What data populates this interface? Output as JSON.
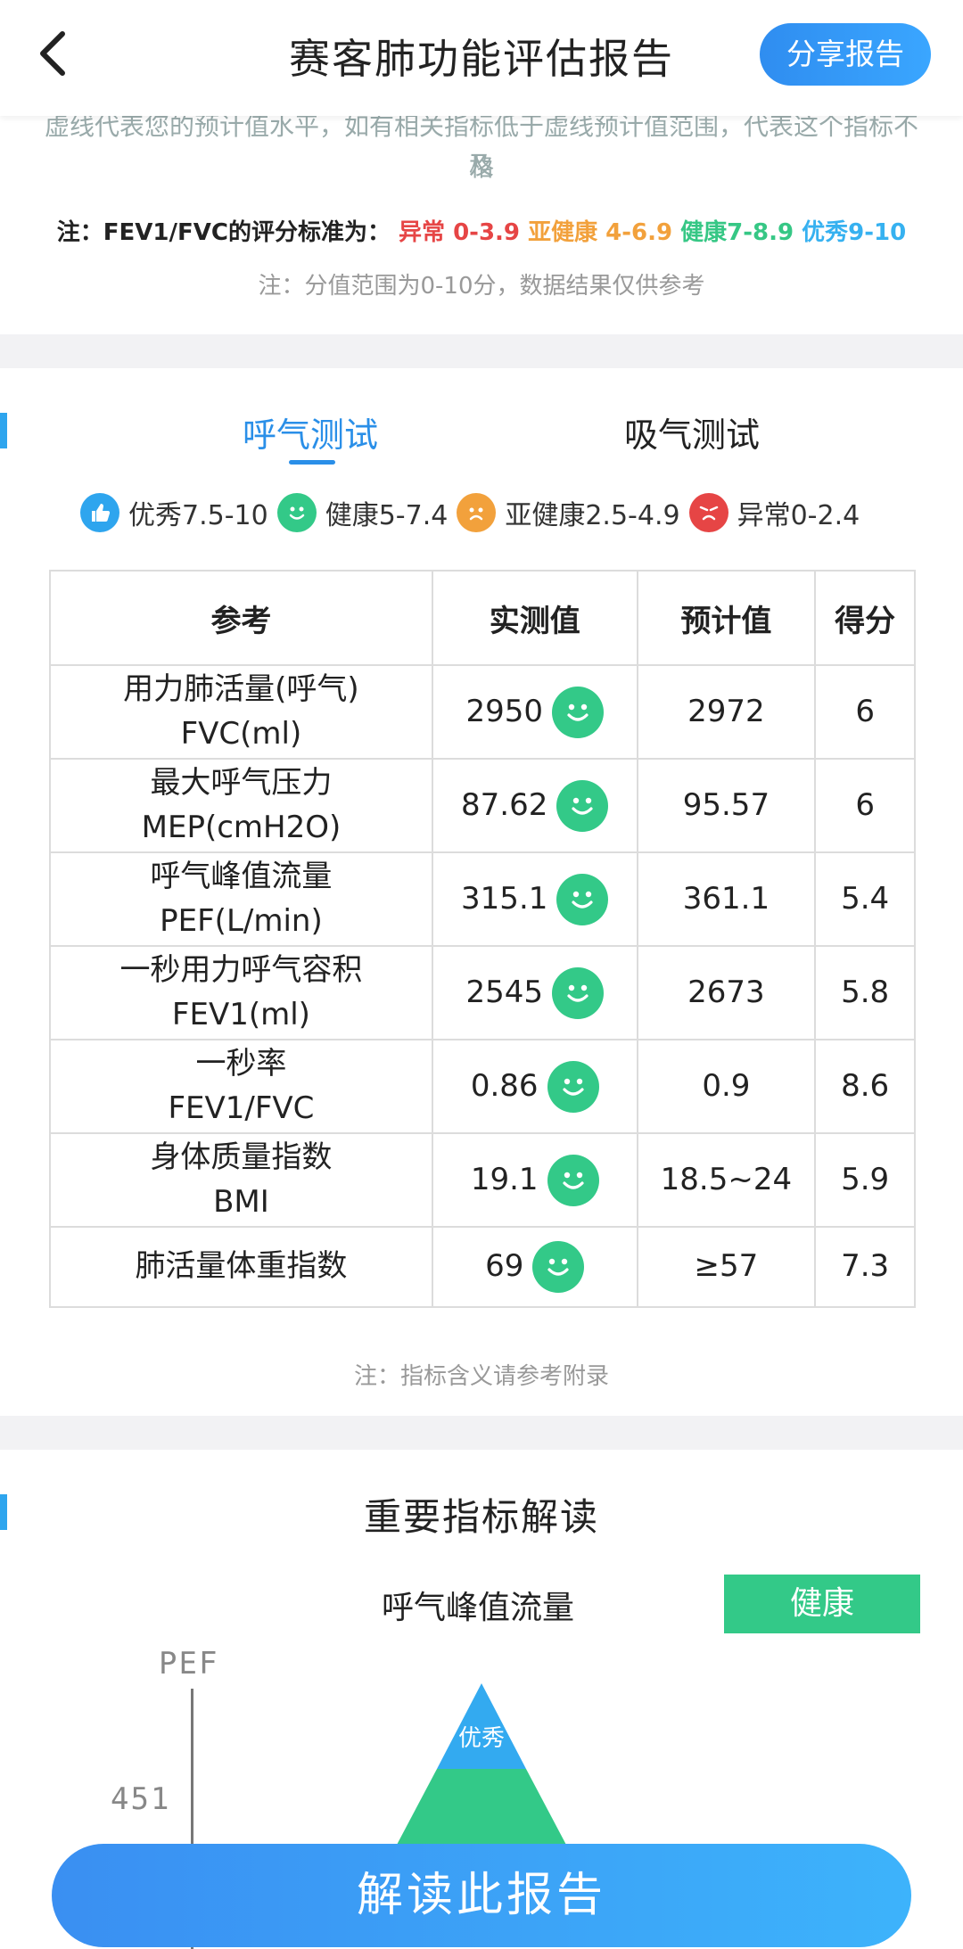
{
  "header": {
    "title": "赛客肺功能评估报告",
    "share_label": "分享报告"
  },
  "notes": {
    "partial_line": "虚线代表您的预计值水平，如有相关指标低于虚线预计值范围，代表这个指标不及",
    "partial_line_end": "格",
    "fev_prefix": "注：FEV1/FVC的评分标准为：",
    "fev_abnormal": "异常 0-3.9",
    "fev_subhealthy": "亚健康 4-6.9",
    "fev_healthy": "健康7-8.9",
    "fev_excellent": "优秀9-10",
    "range_note": "注：分值范围为0-10分，数据结果仅供参考"
  },
  "tabs": {
    "exhale": "呼气测试",
    "inhale": "吸气测试"
  },
  "legend": {
    "excellent": "优秀7.5-10",
    "healthy": "健康5-7.4",
    "subhealthy": "亚健康2.5-4.9",
    "abnormal": "异常0-2.4"
  },
  "table": {
    "headers": [
      "参考",
      "实测值",
      "预计值",
      "得分"
    ],
    "rows": [
      {
        "name": "用力肺活量(呼气)",
        "abbr": "FVC(ml)",
        "measured": "2950",
        "predicted": "2972",
        "score": "6"
      },
      {
        "name": "最大呼气压力",
        "abbr": "MEP(cmH2O)",
        "measured": "87.62",
        "predicted": "95.57",
        "score": "6"
      },
      {
        "name": "呼气峰值流量",
        "abbr": "PEF(L/min)",
        "measured": "315.1",
        "predicted": "361.1",
        "score": "5.4"
      },
      {
        "name": "一秒用力呼气容积",
        "abbr": "FEV1(ml)",
        "measured": "2545",
        "predicted": "2673",
        "score": "5.8"
      },
      {
        "name": "一秒率",
        "abbr": "FEV1/FVC",
        "measured": "0.86",
        "predicted": "0.9",
        "score": "8.6"
      },
      {
        "name": "身体质量指数",
        "abbr": "BMI",
        "measured": "19.1",
        "predicted": "18.5~24",
        "score": "5.9"
      },
      {
        "name": "肺活量体重指数",
        "abbr": "",
        "measured": "69",
        "predicted": "≥57",
        "score": "7.3"
      }
    ],
    "note": "注：指标含义请参考附录"
  },
  "indicators": {
    "title": "重要指标解读",
    "subtitle": "呼气峰值流量",
    "status": "健康",
    "axis_label": "PEF",
    "tick_value": "451",
    "pyramid_top_label": "优秀"
  },
  "cta_label": "解读此报告",
  "colors": {
    "blue": "#2a8fe8",
    "green": "#33c988",
    "orange": "#f2a13c",
    "red": "#e64545"
  }
}
